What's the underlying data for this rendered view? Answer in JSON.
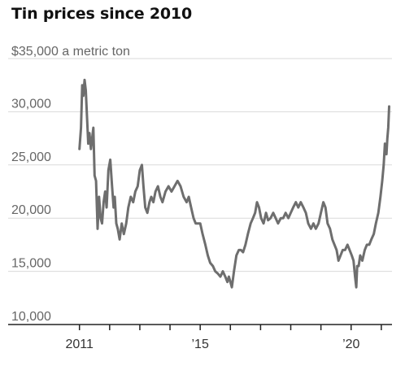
{
  "chart_data": {
    "type": "line",
    "title": "Tin prices since 2010",
    "ylabel": "$35,000 a metric ton",
    "xlim": [
      2010.95,
      2021.35
    ],
    "ylim": [
      10000,
      35000
    ],
    "yticks": [
      {
        "value": 10000,
        "label": "10,000"
      },
      {
        "value": 15000,
        "label": "15,000"
      },
      {
        "value": 20000,
        "label": "20,000"
      },
      {
        "value": 25000,
        "label": "25,000"
      },
      {
        "value": 30000,
        "label": "30,000"
      }
    ],
    "xticks": [
      {
        "value": 2011,
        "label": "2011"
      },
      {
        "value": 2012,
        "label": ""
      },
      {
        "value": 2013,
        "label": ""
      },
      {
        "value": 2014,
        "label": ""
      },
      {
        "value": 2015,
        "label": "’15"
      },
      {
        "value": 2016,
        "label": ""
      },
      {
        "value": 2017,
        "label": ""
      },
      {
        "value": 2018,
        "label": ""
      },
      {
        "value": 2019,
        "label": ""
      },
      {
        "value": 2020,
        "label": "’20"
      },
      {
        "value": 2021,
        "label": ""
      }
    ],
    "grid": true,
    "color": "#6e6e6e",
    "x": [
      2011.0,
      2011.05,
      2011.09,
      2011.13,
      2011.17,
      2011.21,
      2011.25,
      2011.29,
      2011.33,
      2011.38,
      2011.42,
      2011.46,
      2011.5,
      2011.55,
      2011.6,
      2011.65,
      2011.7,
      2011.75,
      2011.8,
      2011.85,
      2011.9,
      2011.96,
      2012.02,
      2012.08,
      2012.13,
      2012.17,
      2012.22,
      2012.27,
      2012.33,
      2012.4,
      2012.47,
      2012.55,
      2012.62,
      2012.7,
      2012.78,
      2012.85,
      2012.93,
      2013.0,
      2013.07,
      2013.12,
      2013.18,
      2013.25,
      2013.32,
      2013.38,
      2013.45,
      2013.52,
      2013.6,
      2013.68,
      2013.75,
      2013.85,
      2013.95,
      2014.05,
      2014.15,
      2014.25,
      2014.35,
      2014.45,
      2014.55,
      2014.62,
      2014.7,
      2014.78,
      2014.85,
      2014.92,
      2015.0,
      2015.08,
      2015.17,
      2015.25,
      2015.33,
      2015.42,
      2015.5,
      2015.58,
      2015.67,
      2015.75,
      2015.83,
      2015.9,
      2015.95,
      2016.0,
      2016.05,
      2016.12,
      2016.2,
      2016.28,
      2016.35,
      2016.42,
      2016.5,
      2016.58,
      2016.67,
      2016.75,
      2016.82,
      2016.88,
      2016.95,
      2017.02,
      2017.1,
      2017.18,
      2017.25,
      2017.33,
      2017.42,
      2017.5,
      2017.58,
      2017.67,
      2017.75,
      2017.83,
      2017.92,
      2018.0,
      2018.08,
      2018.17,
      2018.25,
      2018.33,
      2018.42,
      2018.5,
      2018.58,
      2018.67,
      2018.75,
      2018.83,
      2018.92,
      2019.0,
      2019.08,
      2019.15,
      2019.22,
      2019.3,
      2019.38,
      2019.45,
      2019.52,
      2019.58,
      2019.65,
      2019.72,
      2019.8,
      2019.88,
      2019.95,
      2020.02,
      2020.08,
      2020.13,
      2020.17,
      2020.2,
      2020.25,
      2020.3,
      2020.37,
      2020.45,
      2020.52,
      2020.6,
      2020.67,
      2020.75,
      2020.82,
      2020.9,
      2020.97,
      2021.03,
      2021.08,
      2021.12,
      2021.17,
      2021.2,
      2021.23,
      2021.26
    ],
    "y": [
      26500,
      28500,
      32500,
      31500,
      33000,
      32000,
      29500,
      27000,
      28000,
      26500,
      27500,
      28500,
      24000,
      23500,
      19000,
      22000,
      20000,
      19500,
      21500,
      22500,
      21000,
      24500,
      25500,
      23000,
      21000,
      22000,
      19500,
      19000,
      18000,
      19500,
      18500,
      19500,
      21000,
      22000,
      21500,
      22500,
      23000,
      24500,
      25000,
      23000,
      21000,
      20500,
      21500,
      22000,
      21500,
      22500,
      23000,
      22000,
      21500,
      22500,
      23000,
      22500,
      23000,
      23500,
      23000,
      22000,
      21500,
      22000,
      21000,
      20000,
      19500,
      19500,
      19500,
      18500,
      17500,
      16500,
      15800,
      15500,
      15000,
      14800,
      14500,
      15000,
      14500,
      14000,
      14500,
      14000,
      13500,
      15000,
      16500,
      17000,
      17000,
      16800,
      17500,
      18500,
      19500,
      20000,
      20500,
      21500,
      21000,
      20000,
      19500,
      20500,
      19800,
      20000,
      20500,
      20000,
      19500,
      20000,
      20000,
      20500,
      20000,
      20500,
      21000,
      21500,
      21000,
      21500,
      21000,
      20500,
      19500,
      19000,
      19500,
      19000,
      19500,
      20500,
      21500,
      21000,
      19500,
      19000,
      18000,
      17500,
      17000,
      16000,
      16500,
      17000,
      17000,
      17500,
      17000,
      16500,
      16000,
      14500,
      13500,
      15500,
      15500,
      16500,
      16000,
      17000,
      17500,
      17500,
      18000,
      18500,
      19500,
      20500,
      22000,
      23500,
      25000,
      27000,
      26000,
      27500,
      28500,
      30500
    ]
  }
}
